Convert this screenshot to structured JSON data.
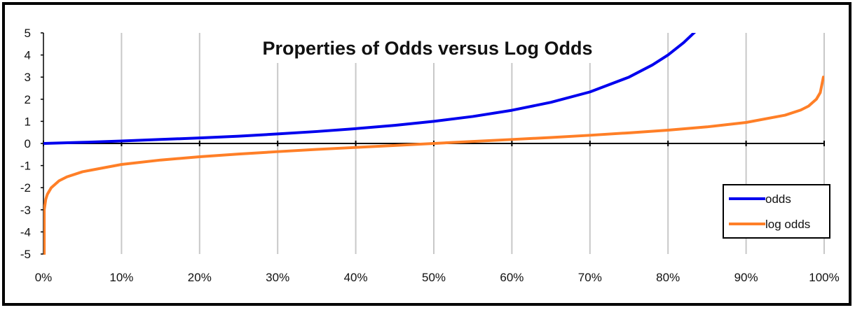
{
  "chart_data": {
    "type": "line",
    "title": "Properties of Odds versus Log Odds",
    "xlabel": "",
    "ylabel": "",
    "xlim": [
      0,
      1
    ],
    "ylim": [
      -5,
      5
    ],
    "x_ticks": [
      "0%",
      "10%",
      "20%",
      "30%",
      "40%",
      "50%",
      "60%",
      "70%",
      "80%",
      "90%",
      "100%"
    ],
    "y_ticks": [
      "-5",
      "-4",
      "-3",
      "-2",
      "-1",
      "0",
      "1",
      "2",
      "3",
      "4",
      "5"
    ],
    "grid": "vertical",
    "legend_position": "bottom-right",
    "series": [
      {
        "name": "odds",
        "color": "#0000ee",
        "x": [
          0,
          0.05,
          0.1,
          0.15,
          0.2,
          0.25,
          0.3,
          0.35,
          0.4,
          0.45,
          0.5,
          0.55,
          0.6,
          0.65,
          0.7,
          0.75,
          0.78,
          0.8,
          0.82,
          0.835
        ],
        "y": [
          0,
          0.05,
          0.11,
          0.18,
          0.25,
          0.33,
          0.43,
          0.54,
          0.67,
          0.82,
          1.0,
          1.22,
          1.5,
          1.86,
          2.33,
          3.0,
          3.55,
          4.0,
          4.56,
          5.06
        ]
      },
      {
        "name": "log odds",
        "color": "#ff7f27",
        "x": [
          0.001,
          0.003,
          0.005,
          0.01,
          0.02,
          0.03,
          0.05,
          0.1,
          0.15,
          0.2,
          0.25,
          0.3,
          0.35,
          0.4,
          0.45,
          0.5,
          0.55,
          0.6,
          0.65,
          0.7,
          0.75,
          0.8,
          0.85,
          0.9,
          0.95,
          0.97,
          0.98,
          0.99,
          0.995,
          0.999
        ],
        "y": [
          -3.0,
          -2.52,
          -2.3,
          -2.0,
          -1.69,
          -1.51,
          -1.28,
          -0.95,
          -0.75,
          -0.6,
          -0.48,
          -0.37,
          -0.27,
          -0.18,
          -0.09,
          0.0,
          0.09,
          0.18,
          0.27,
          0.37,
          0.48,
          0.6,
          0.75,
          0.95,
          1.28,
          1.51,
          1.69,
          2.0,
          2.3,
          3.0
        ]
      }
    ]
  }
}
